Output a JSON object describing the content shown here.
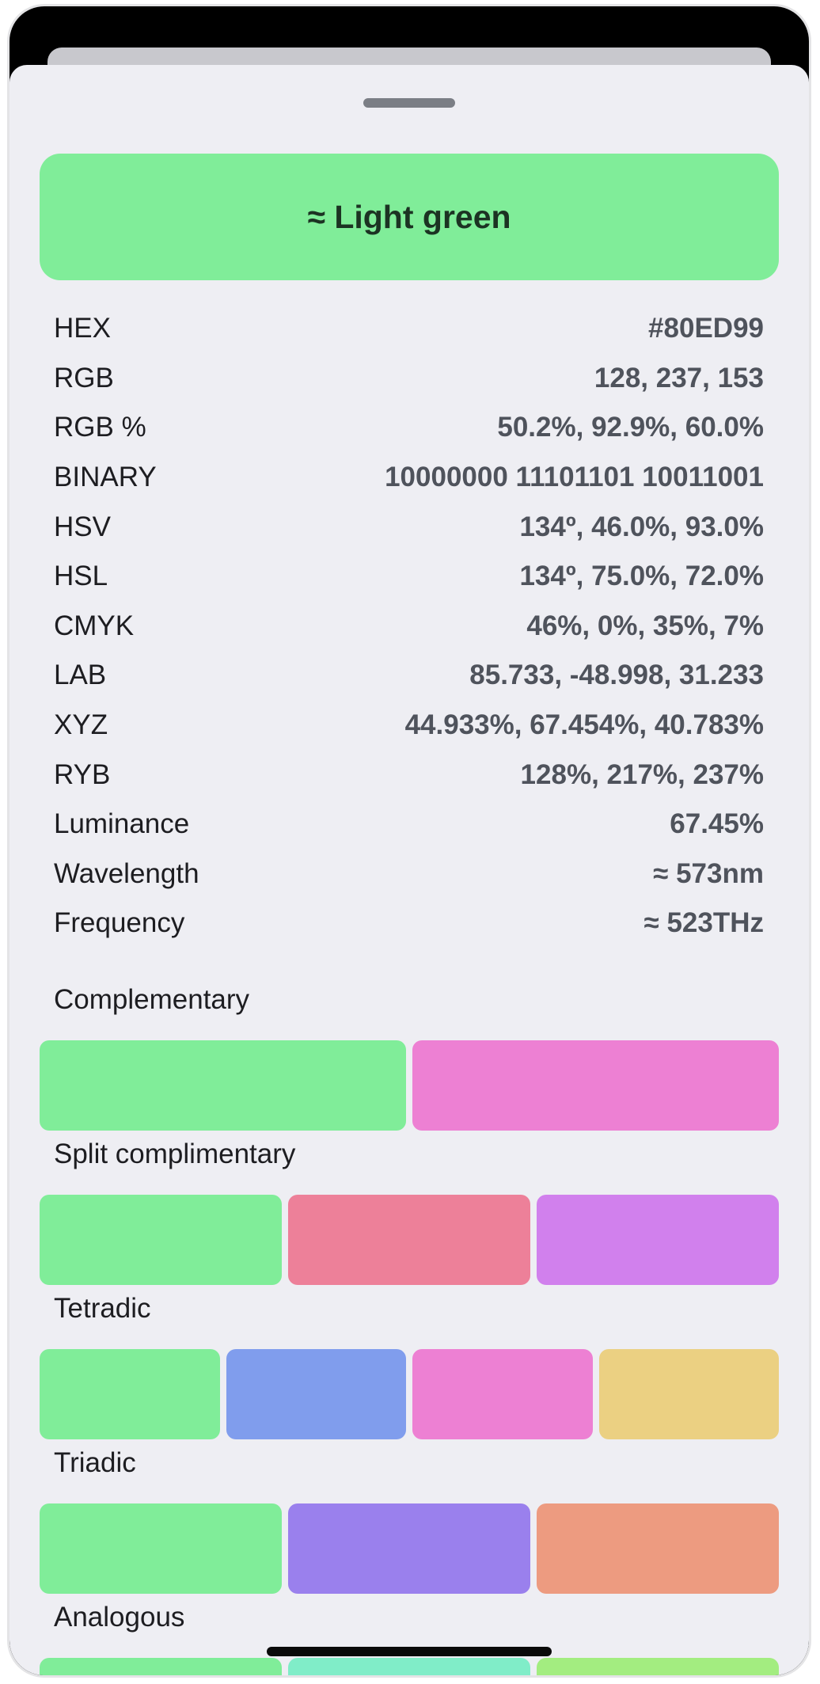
{
  "header": {
    "color_name": "≈ Light green",
    "color_hex": "#80ed99"
  },
  "properties": [
    {
      "label": "HEX",
      "value": "#80ED99"
    },
    {
      "label": "RGB",
      "value": "128, 237, 153"
    },
    {
      "label": "RGB %",
      "value": "50.2%, 92.9%, 60.0%"
    },
    {
      "label": "BINARY",
      "value": "10000000 11101101 10011001"
    },
    {
      "label": "HSV",
      "value": "134º, 46.0%, 93.0%"
    },
    {
      "label": "HSL",
      "value": "134º, 75.0%, 72.0%"
    },
    {
      "label": "CMYK",
      "value": "46%, 0%, 35%, 7%"
    },
    {
      "label": "LAB",
      "value": "85.733, -48.998, 31.233"
    },
    {
      "label": "XYZ",
      "value": "44.933%, 67.454%, 40.783%"
    },
    {
      "label": "RYB",
      "value": "128%, 217%, 237%"
    },
    {
      "label": "Luminance",
      "value": "67.45%"
    },
    {
      "label": "Wavelength",
      "value": "≈ 573nm"
    },
    {
      "label": "Frequency",
      "value": "≈ 523THz"
    }
  ],
  "harmonies": [
    {
      "label": "Complementary",
      "colors": [
        "#80ed99",
        "#ed80d3"
      ]
    },
    {
      "label": "Split complimentary",
      "colors": [
        "#80ed99",
        "#ed8099",
        "#d180ed"
      ]
    },
    {
      "label": "Tetradic",
      "colors": [
        "#80ed99",
        "#809ded",
        "#ed80d3",
        "#ebd082"
      ]
    },
    {
      "label": "Triadic",
      "colors": [
        "#80ed99",
        "#9a80ed",
        "#ed9b80"
      ]
    },
    {
      "label": "Analogous",
      "colors": [
        "#80ed99",
        "#80edc8",
        "#a3ed80"
      ]
    }
  ]
}
